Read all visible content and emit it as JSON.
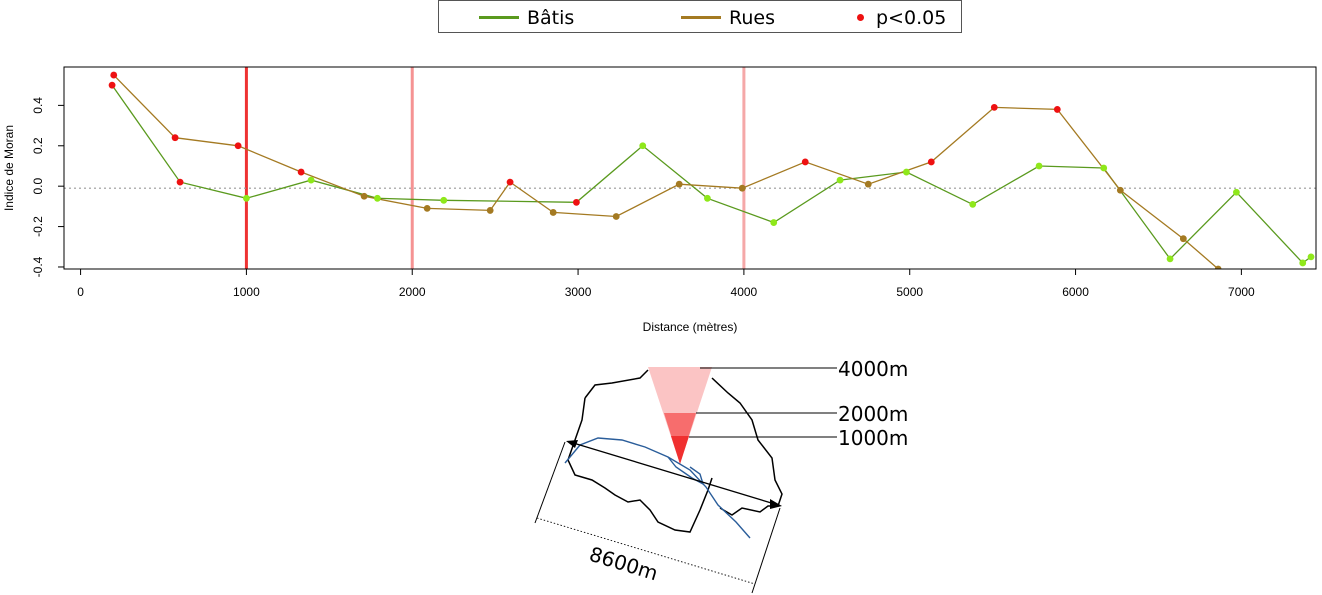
{
  "colors": {
    "batis": "#5a9a1e",
    "batis_point": "#8fe81a",
    "rues": "#a47a22",
    "rues_point": "#a47a22",
    "signif": "#ee1111",
    "threshold_1000": "#ee3333",
    "threshold_2000": "#f59393",
    "threshold_4000": "#f5a8a8"
  },
  "legend": {
    "items": [
      {
        "label": "Bâtis",
        "kind": "line",
        "color": "#5a9a1e"
      },
      {
        "label": "Rues",
        "kind": "line",
        "color": "#a47a22"
      },
      {
        "label": "p<0.05",
        "kind": "dot",
        "color": "#ee1111"
      }
    ]
  },
  "chart_data": {
    "type": "line",
    "xlabel": "Distance (mètres)",
    "ylabel": "Indice de Moran",
    "xlim": [
      -100,
      7450
    ],
    "ylim": [
      -0.41,
      0.59
    ],
    "xticks": [
      0,
      1000,
      2000,
      3000,
      4000,
      5000,
      6000,
      7000
    ],
    "yticks": [
      -0.4,
      -0.2,
      0.0,
      0.2,
      0.4
    ],
    "ytick_labels": [
      "-0.4",
      "-0.2",
      "0.0",
      "0.2",
      "0.4"
    ],
    "reference_line_y": -0.01,
    "thresholds": [
      {
        "x": 1000,
        "color": "#ee3333"
      },
      {
        "x": 2000,
        "color": "#f59393"
      },
      {
        "x": 4000,
        "color": "#f5a8a8"
      }
    ],
    "series": [
      {
        "name": "Bâtis",
        "points": [
          {
            "x": 190,
            "y": 0.5,
            "sig": true
          },
          {
            "x": 600,
            "y": 0.02,
            "sig": true
          },
          {
            "x": 1000,
            "y": -0.06,
            "sig": false
          },
          {
            "x": 1390,
            "y": 0.03,
            "sig": false
          },
          {
            "x": 1790,
            "y": -0.06,
            "sig": false
          },
          {
            "x": 2190,
            "y": -0.07,
            "sig": false
          },
          {
            "x": 2990,
            "y": -0.08,
            "sig": true
          },
          {
            "x": 3390,
            "y": 0.2,
            "sig": false
          },
          {
            "x": 3780,
            "y": -0.06,
            "sig": false
          },
          {
            "x": 4180,
            "y": -0.18,
            "sig": false
          },
          {
            "x": 4580,
            "y": 0.03,
            "sig": false
          },
          {
            "x": 4980,
            "y": 0.07,
            "sig": false
          },
          {
            "x": 5380,
            "y": -0.09,
            "sig": false
          },
          {
            "x": 5780,
            "y": 0.1,
            "sig": false
          },
          {
            "x": 6170,
            "y": 0.09,
            "sig": false
          },
          {
            "x": 6570,
            "y": -0.36,
            "sig": false
          },
          {
            "x": 6970,
            "y": -0.03,
            "sig": false
          },
          {
            "x": 7370,
            "y": -0.38,
            "sig": false
          },
          {
            "x": 7420,
            "y": -0.35,
            "sig": false
          }
        ]
      },
      {
        "name": "Rues",
        "points": [
          {
            "x": 200,
            "y": 0.55,
            "sig": true
          },
          {
            "x": 570,
            "y": 0.24,
            "sig": true
          },
          {
            "x": 950,
            "y": 0.2,
            "sig": true
          },
          {
            "x": 1330,
            "y": 0.07,
            "sig": true
          },
          {
            "x": 1710,
            "y": -0.05,
            "sig": false
          },
          {
            "x": 2090,
            "y": -0.11,
            "sig": false
          },
          {
            "x": 2470,
            "y": -0.12,
            "sig": false
          },
          {
            "x": 2590,
            "y": 0.02,
            "sig": true
          },
          {
            "x": 2850,
            "y": -0.13,
            "sig": false
          },
          {
            "x": 3230,
            "y": -0.15,
            "sig": false
          },
          {
            "x": 3610,
            "y": 0.01,
            "sig": false
          },
          {
            "x": 3990,
            "y": -0.01,
            "sig": false
          },
          {
            "x": 4370,
            "y": 0.12,
            "sig": true
          },
          {
            "x": 4750,
            "y": 0.01,
            "sig": false
          },
          {
            "x": 5130,
            "y": 0.12,
            "sig": true
          },
          {
            "x": 5510,
            "y": 0.39,
            "sig": true
          },
          {
            "x": 5890,
            "y": 0.38,
            "sig": true
          },
          {
            "x": 6270,
            "y": -0.02,
            "sig": false
          },
          {
            "x": 6650,
            "y": -0.26,
            "sig": false
          },
          {
            "x": 6860,
            "y": -0.41,
            "sig": false
          }
        ]
      }
    ],
    "legend_position": "top"
  },
  "inset": {
    "labels": [
      "4000m",
      "2000m",
      "1000m"
    ],
    "width_label": "8600m",
    "cone_colors": [
      "#fbc4c4",
      "#f76d6d",
      "#f03030"
    ]
  }
}
